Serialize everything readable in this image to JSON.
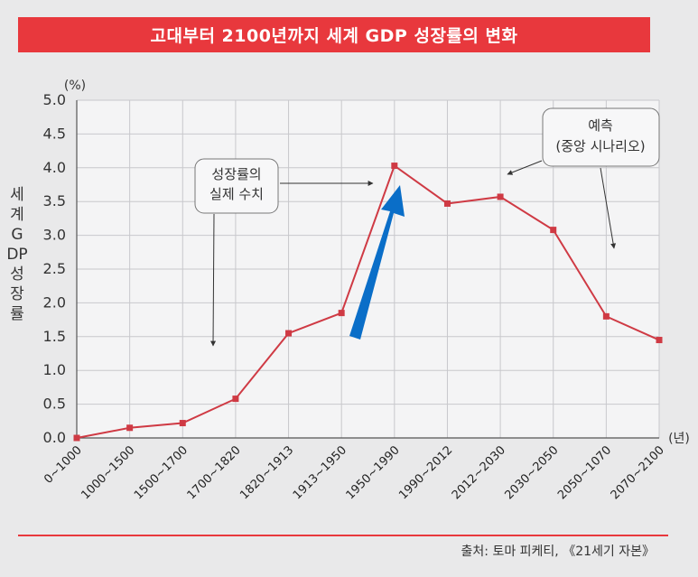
{
  "title": "고대부터 2100년까지 세계 GDP 성장률의 변화",
  "source": "출처: 토마 피케티, 《21세기 자본》",
  "chart_data": {
    "type": "line",
    "ylabel": "세계 GDP 성장률",
    "y_unit": "(%)",
    "x_unit": "(년)",
    "ylim": [
      0,
      5.0
    ],
    "yticks": [
      "0.0",
      "0.5",
      "1.0",
      "1.5",
      "2.0",
      "2.5",
      "3.0",
      "3.5",
      "4.0",
      "4.5",
      "5.0"
    ],
    "categories": [
      "0~1000",
      "1000~1500",
      "1500~1700",
      "1700~1820",
      "1820~1913",
      "1913~1950",
      "1950~1990",
      "1990~2012",
      "2012~2030",
      "2030~2050",
      "2050~1070",
      "2070~2100"
    ],
    "values": [
      0.0,
      0.15,
      0.22,
      0.58,
      1.55,
      1.85,
      4.03,
      3.47,
      3.57,
      3.08,
      1.8,
      1.45
    ],
    "grid": true,
    "annotations": [
      {
        "lines": [
          "성장률의",
          "실제 수치"
        ]
      },
      {
        "lines": [
          "예측",
          "(중앙 시나리오)"
        ]
      }
    ],
    "colors": {
      "line": "#cf3a44",
      "marker": "#cf3a44",
      "highlight_arrow": "#0a6ec8",
      "title_bg": "#e8383d"
    }
  }
}
